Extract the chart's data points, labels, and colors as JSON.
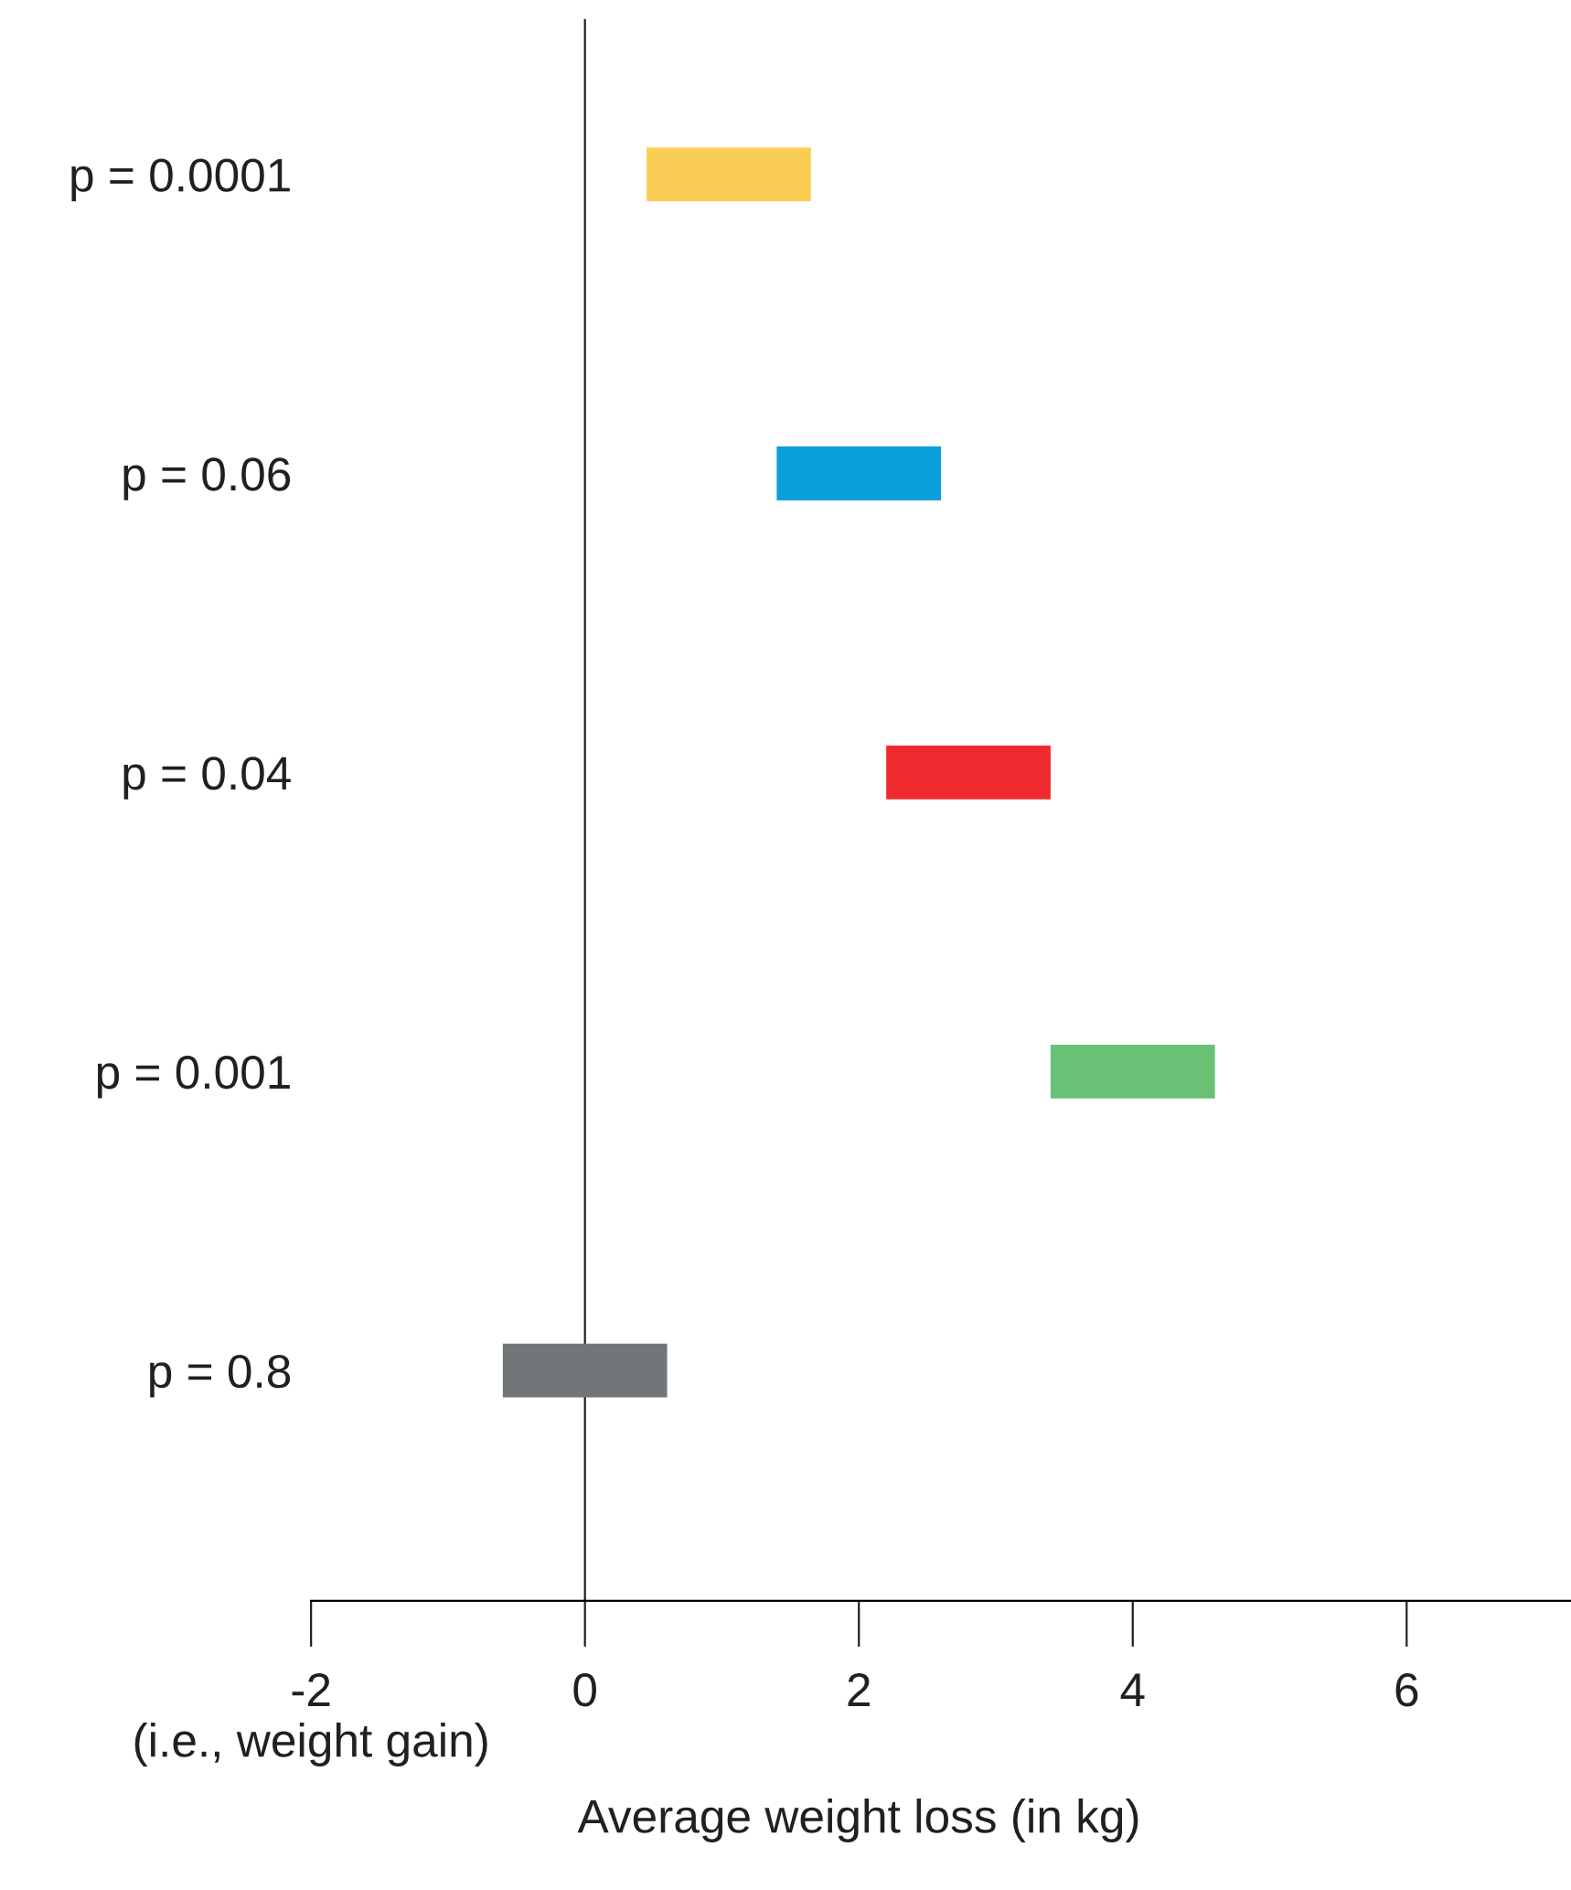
{
  "chart_data": {
    "type": "bar",
    "orientation": "horizontal",
    "categories": [
      "p = 0.0001",
      "p = 0.06",
      "p = 0.04",
      "p = 0.001",
      "p = 0.8"
    ],
    "base": [
      0.45,
      1.4,
      2.2,
      3.4,
      -0.6
    ],
    "values": [
      1.2,
      1.2,
      1.2,
      1.2,
      1.2
    ],
    "colors": [
      "#fccd55",
      "#0ba0dc",
      "#ee2a2e",
      "#68c174",
      "#717779"
    ],
    "xlim": [
      -2,
      7.2
    ],
    "xticks": [
      {
        "value": -2,
        "label": "-2\n(i.e., weight gain)"
      },
      0,
      2,
      4,
      6
    ],
    "xlabel": "Average weight loss (in kg)",
    "ref_lines": [
      {
        "axis": "x",
        "value": 0,
        "color": "#231f20"
      }
    ],
    "grid": false
  }
}
